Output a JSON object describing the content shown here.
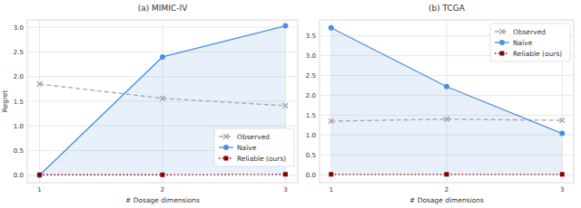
{
  "chart_data": [
    {
      "type": "line",
      "title": "(a) MIMIC-IV",
      "x_label": "# Dosage dimensions",
      "y_label": "Regret",
      "x": [
        1,
        2,
        3
      ],
      "xlim": [
        0.9,
        3.1
      ],
      "xticks": [
        1,
        2,
        3
      ],
      "ylim": [
        -0.15,
        3.15
      ],
      "yticks": [
        {
          "value": 0,
          "label": "0.0"
        },
        {
          "value": 0.5,
          "label": "0.5"
        },
        {
          "value": 1,
          "label": "1.0"
        },
        {
          "value": 1.5,
          "label": "1.5"
        },
        {
          "value": 2,
          "label": "2.0"
        },
        {
          "value": 2.5,
          "label": "2.5"
        },
        {
          "value": 3,
          "label": "3.0"
        }
      ],
      "grid": true,
      "legend": "lower right",
      "series": [
        {
          "name": "Observed",
          "color": "#a5a5a5",
          "marker": "x",
          "line_style": "dashed",
          "values": [
            1.85,
            1.56,
            1.41
          ]
        },
        {
          "name": "Naïve",
          "color": "#4a90e2",
          "marker": "circle",
          "line_style": "solid",
          "values": [
            0.0,
            2.4,
            3.03
          ]
        },
        {
          "name": "Reliable (ours)",
          "color": "#8b0000",
          "marker": "square",
          "line_style": "dotted",
          "values": [
            0.01,
            0.01,
            0.02
          ]
        }
      ]
    },
    {
      "type": "line",
      "title": "(b) TCGA",
      "x_label": "# Dosage dimensions",
      "x": [
        1,
        2,
        3
      ],
      "xlim": [
        0.9,
        3.1
      ],
      "xticks": [
        1,
        2,
        3
      ],
      "ylim": [
        -0.2,
        3.9
      ],
      "yticks": [
        {
          "value": 0,
          "label": "0.0"
        },
        {
          "value": 0.5,
          "label": "0.5"
        },
        {
          "value": 1,
          "label": "1.0"
        },
        {
          "value": 1.5,
          "label": "1.5"
        },
        {
          "value": 2,
          "label": "2.0"
        },
        {
          "value": 2.5,
          "label": "2.5"
        },
        {
          "value": 3,
          "label": "3.0"
        },
        {
          "value": 3.5,
          "label": "3.5"
        }
      ],
      "grid": true,
      "legend": "upper right",
      "series": [
        {
          "name": "Observed",
          "color": "#a5a5a5",
          "marker": "x",
          "line_style": "dashed",
          "values": [
            1.35,
            1.4,
            1.37
          ]
        },
        {
          "name": "Naïve",
          "color": "#4a90e2",
          "marker": "circle",
          "line_style": "solid",
          "values": [
            3.7,
            2.22,
            1.04
          ]
        },
        {
          "name": "Reliable (ours)",
          "color": "#8b0000",
          "marker": "square",
          "line_style": "dotted",
          "values": [
            0.01,
            0.01,
            0.01
          ]
        }
      ]
    }
  ]
}
